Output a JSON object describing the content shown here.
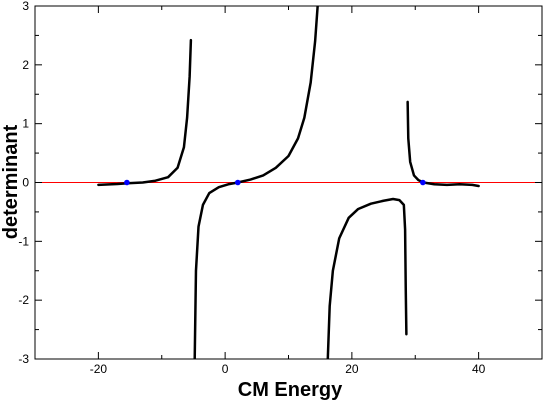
{
  "chart_data": {
    "type": "line",
    "title": "",
    "xlabel": "CM Energy",
    "ylabel": "determinant",
    "xlim": [
      -30,
      50
    ],
    "ylim": [
      -3,
      3
    ],
    "x_ticks": [
      -20,
      0,
      20,
      40
    ],
    "x_tick_labels": [
      "-20",
      "0",
      "20",
      "40"
    ],
    "y_ticks": [
      -3,
      -2,
      -1,
      0,
      1,
      2,
      3
    ],
    "y_tick_labels": [
      "-3",
      "-2",
      "-1",
      "0",
      "1",
      "2",
      "3"
    ],
    "grid": false,
    "legend": "none",
    "colors": {
      "curve": "#000000",
      "zero_line": "#ff0000",
      "roots": "#0000ff",
      "frame": "#000000"
    },
    "series": [
      {
        "segments": [
          [
            [
              -20,
              -0.04
            ],
            [
              -17,
              -0.025
            ],
            [
              -15,
              -0.01
            ],
            [
              -13,
              0.0
            ],
            [
              -11,
              0.03
            ],
            [
              -9,
              0.09
            ],
            [
              -7.5,
              0.25
            ],
            [
              -6.5,
              0.6
            ],
            [
              -6.0,
              1.1
            ],
            [
              -5.6,
              1.8
            ],
            [
              -5.4,
              2.42
            ]
          ],
          [
            [
              -4.8,
              -3.0
            ],
            [
              -4.6,
              -1.5
            ],
            [
              -4.2,
              -0.75
            ],
            [
              -3.5,
              -0.38
            ],
            [
              -2.5,
              -0.18
            ],
            [
              -1,
              -0.08
            ],
            [
              0.5,
              -0.03
            ],
            [
              2,
              0.0
            ],
            [
              4,
              0.05
            ],
            [
              6,
              0.12
            ],
            [
              8,
              0.25
            ],
            [
              10,
              0.45
            ],
            [
              11.5,
              0.75
            ],
            [
              12.5,
              1.1
            ],
            [
              13.5,
              1.7
            ],
            [
              14.2,
              2.4
            ],
            [
              14.6,
              3.0
            ]
          ],
          [
            [
              16.2,
              -3.0
            ],
            [
              16.5,
              -2.1
            ],
            [
              17,
              -1.5
            ],
            [
              18,
              -0.95
            ],
            [
              19.5,
              -0.6
            ],
            [
              21,
              -0.45
            ],
            [
              23,
              -0.36
            ],
            [
              25,
              -0.31
            ],
            [
              26.5,
              -0.28
            ],
            [
              27.5,
              -0.3
            ],
            [
              28.2,
              -0.38
            ],
            [
              28.4,
              -0.8
            ],
            [
              28.5,
              -1.8
            ],
            [
              28.6,
              -2.58
            ]
          ],
          [
            [
              28.8,
              1.37
            ],
            [
              28.9,
              0.75
            ],
            [
              29.2,
              0.35
            ],
            [
              29.8,
              0.12
            ],
            [
              30.5,
              0.04
            ],
            [
              31.3,
              0.0
            ],
            [
              33,
              -0.03
            ],
            [
              35,
              -0.04
            ],
            [
              37,
              -0.03
            ],
            [
              39,
              -0.04
            ],
            [
              40,
              -0.06
            ]
          ]
        ]
      }
    ],
    "roots": [
      {
        "x": -15.5,
        "y": 0
      },
      {
        "x": 2.0,
        "y": 0
      },
      {
        "x": 31.2,
        "y": 0
      }
    ]
  }
}
